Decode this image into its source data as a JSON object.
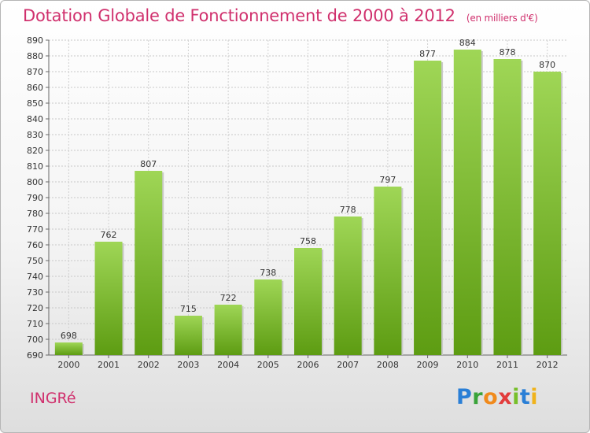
{
  "header": {
    "title": "Dotation Globale de Fonctionnement de 2000 à 2012",
    "unit": "(en milliers d'€)"
  },
  "commune": "INGRé",
  "logo": {
    "text": "Proxiti",
    "colors": [
      "#2a7fd6",
      "#3aa33a",
      "#f08a1c",
      "#e23c3c",
      "#77bf2a",
      "#2a7fd6",
      "#f0b31c"
    ]
  },
  "chart_data": {
    "type": "bar",
    "title": "Dotation Globale de Fonctionnement de 2000 à 2012",
    "subtitle": "(en milliers d'€)",
    "categories": [
      "2000",
      "2001",
      "2002",
      "2003",
      "2004",
      "2005",
      "2006",
      "2007",
      "2008",
      "2009",
      "2010",
      "2011",
      "2012"
    ],
    "values": [
      698,
      762,
      807,
      715,
      722,
      738,
      758,
      778,
      797,
      877,
      884,
      878,
      870
    ],
    "ylim": [
      690,
      890
    ],
    "ytick_step": 10,
    "grid": true,
    "bar_color": "#7cc22e",
    "xlabel": "",
    "ylabel": ""
  }
}
